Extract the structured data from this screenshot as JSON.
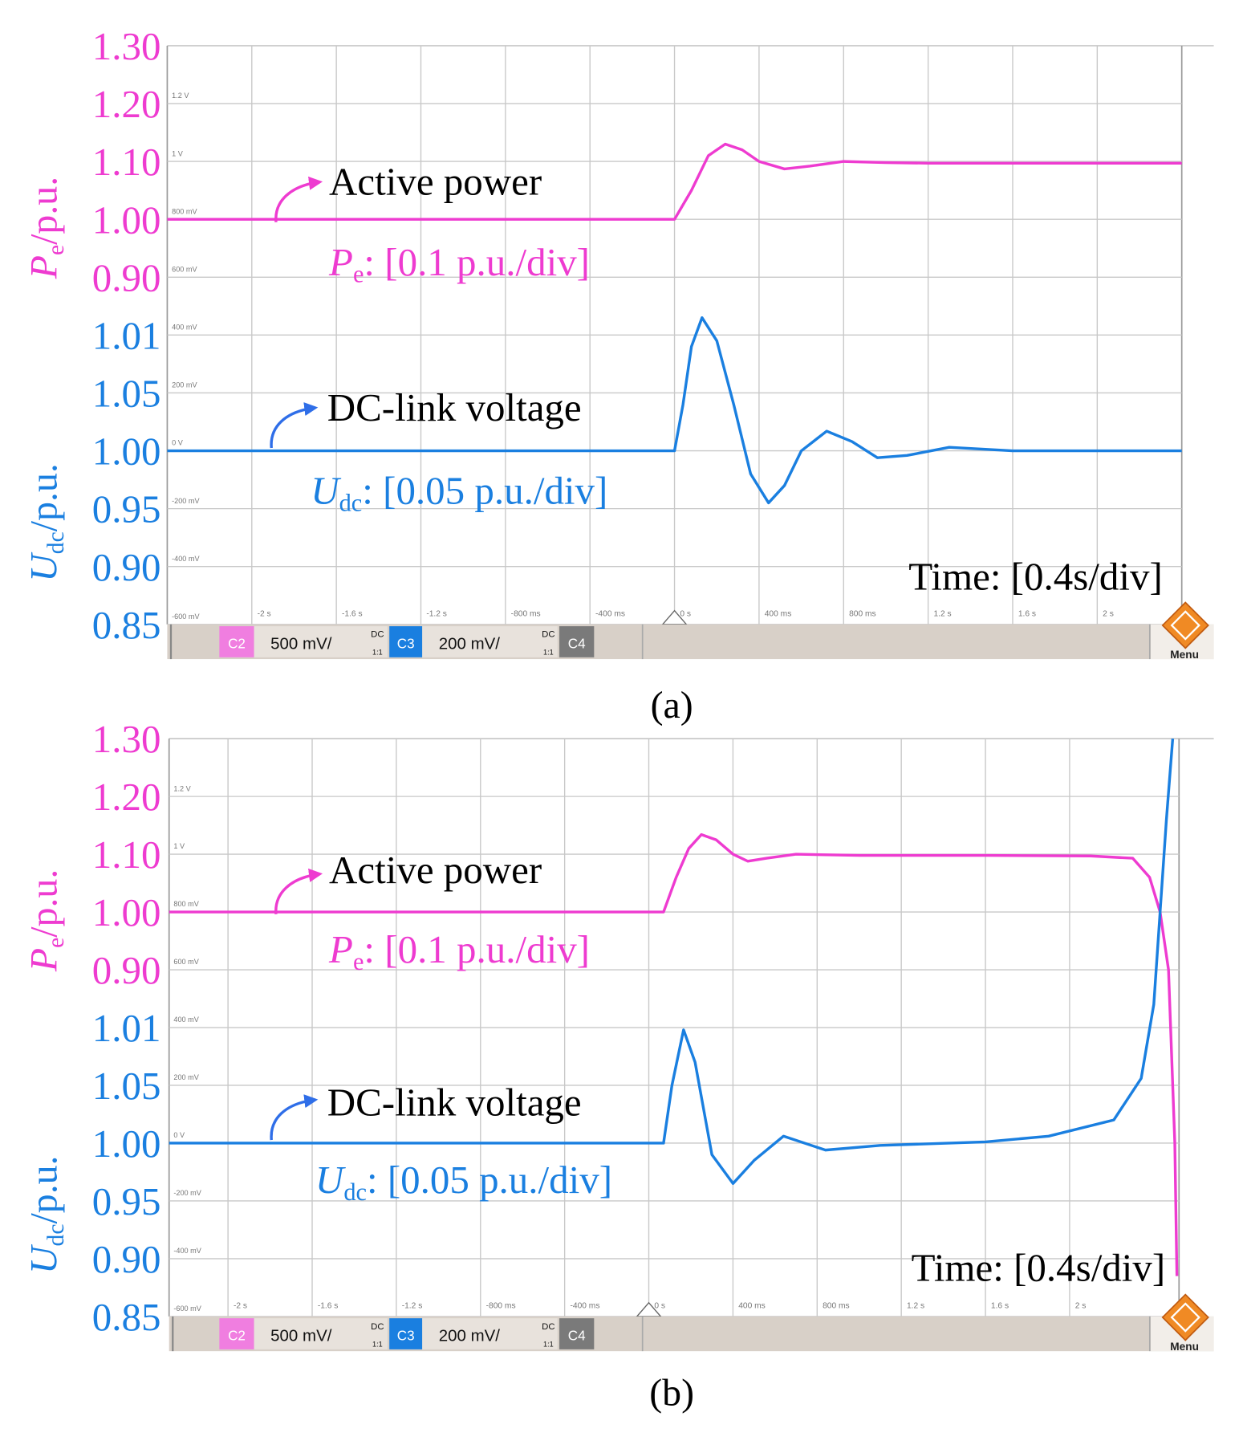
{
  "chart_data": [
    {
      "type": "line",
      "caption": "(a)",
      "y_label": {
        "symbol": "P",
        "subscript": "e",
        "unit": "/p.u."
      },
      "y2_label": {
        "symbol": "U",
        "subscript": "dc",
        "unit": "/p.u."
      },
      "ylim": [
        0.3,
        1.3
      ],
      "yticks": [
        {
          "value": 1.3,
          "label": "1.30"
        },
        {
          "value": 1.2,
          "label": "1.20"
        },
        {
          "value": 1.1,
          "label": "1.10"
        },
        {
          "value": 1.0,
          "label": "1.00"
        },
        {
          "value": 0.9,
          "label": "0.90"
        }
      ],
      "y2lim": [
        0.85,
        1.35
      ],
      "y2_extra_label": "1.01",
      "y2ticks": [
        {
          "value": 1.05,
          "label": "1.05"
        },
        {
          "value": 1.0,
          "label": "1.00"
        },
        {
          "value": 0.95,
          "label": "0.95"
        },
        {
          "value": 0.9,
          "label": "0.90"
        },
        {
          "value": 0.85,
          "label": "0.85"
        }
      ],
      "scope_ylim": [
        -0.6,
        1.4
      ],
      "scope_yticks": [
        {
          "value": 1.2,
          "label": "1.2 V"
        },
        {
          "value": 1.0,
          "label": "1 V"
        },
        {
          "value": 0.8,
          "label": "800 mV"
        },
        {
          "value": 0.6,
          "label": "600 mV"
        },
        {
          "value": 0.4,
          "label": "400 mV"
        },
        {
          "value": 0.2,
          "label": "200 mV"
        },
        {
          "value": 0,
          "label": "0 V"
        },
        {
          "value": -0.2,
          "label": "-200 mV"
        },
        {
          "value": -0.4,
          "label": "-400 mV"
        },
        {
          "value": -0.6,
          "label": "-600 mV"
        }
      ],
      "xlim": [
        -2.4,
        2.4
      ],
      "xticks": [
        {
          "value": -2,
          "label": "-2 s"
        },
        {
          "value": -1.6,
          "label": "-1.6 s"
        },
        {
          "value": -1.2,
          "label": "-1.2 s"
        },
        {
          "value": -0.8,
          "label": "-800 ms"
        },
        {
          "value": -0.4,
          "label": "-400 ms"
        },
        {
          "value": 0,
          "label": "0 s"
        },
        {
          "value": 0.4,
          "label": "400 ms"
        },
        {
          "value": 0.8,
          "label": "800 ms"
        },
        {
          "value": 1.2,
          "label": "1.2 s"
        },
        {
          "value": 1.6,
          "label": "1.6 s"
        },
        {
          "value": 2,
          "label": "2 s"
        }
      ],
      "series": [
        {
          "name": "Active power",
          "color": "#ee3bd0",
          "axis": "y",
          "x": [
            -2.4,
            0,
            0.08,
            0.16,
            0.24,
            0.32,
            0.4,
            0.52,
            0.64,
            0.8,
            1.0,
            1.2,
            2.4
          ],
          "values": [
            1.0,
            1.0,
            1.05,
            1.11,
            1.13,
            1.12,
            1.1,
            1.087,
            1.092,
            1.1,
            1.098,
            1.097,
            1.097
          ]
        },
        {
          "name": "DC-link voltage",
          "color": "#1a7fe0",
          "axis": "y2",
          "x": [
            -2.4,
            0,
            0.04,
            0.08,
            0.13,
            0.2,
            0.28,
            0.36,
            0.445,
            0.52,
            0.6,
            0.72,
            0.84,
            0.96,
            1.1,
            1.3,
            1.6,
            2.4
          ],
          "values": [
            1.0,
            1.0,
            1.04,
            1.09,
            1.115,
            1.095,
            1.04,
            0.98,
            0.955,
            0.97,
            1.0,
            1.017,
            1.008,
            0.994,
            0.996,
            1.003,
            1.0,
            1.0
          ]
        }
      ],
      "annotations": {
        "pe_scale": {
          "symbol": "P",
          "subscript": "e",
          "text": ": [0.1 p.u./div]"
        },
        "udc_scale": {
          "symbol": "U",
          "subscript": "dc",
          "text": ": [0.05 p.u./div]"
        },
        "time_scale": "Time: [0.4s/div]"
      },
      "status_bar": {
        "c2": "C2",
        "c2_scale": "500 mV/",
        "c2_coupling": "DC",
        "c2_ratio": "1:1",
        "c3": "C3",
        "c3_scale": "200 mV/",
        "c3_coupling": "DC",
        "c3_ratio": "1:1",
        "c4": "C4",
        "menu": "Menu"
      }
    },
    {
      "type": "line",
      "caption": "(b)",
      "y_label": {
        "symbol": "P",
        "subscript": "e",
        "unit": "/p.u."
      },
      "y2_label": {
        "symbol": "U",
        "subscript": "dc",
        "unit": "/p.u."
      },
      "ylim": [
        0.3,
        1.3
      ],
      "yticks": [
        {
          "value": 1.3,
          "label": "1.30"
        },
        {
          "value": 1.2,
          "label": "1.20"
        },
        {
          "value": 1.1,
          "label": "1.10"
        },
        {
          "value": 1.0,
          "label": "1.00"
        },
        {
          "value": 0.9,
          "label": "0.90"
        }
      ],
      "y2lim": [
        0.85,
        1.35
      ],
      "y2_extra_label": "1.01",
      "y2ticks": [
        {
          "value": 1.05,
          "label": "1.05"
        },
        {
          "value": 1.0,
          "label": "1.00"
        },
        {
          "value": 0.95,
          "label": "0.95"
        },
        {
          "value": 0.9,
          "label": "0.90"
        },
        {
          "value": 0.85,
          "label": "0.85"
        }
      ],
      "scope_ylim": [
        -0.6,
        1.4
      ],
      "scope_yticks": [
        {
          "value": 1.2,
          "label": "1.2 V"
        },
        {
          "value": 1.0,
          "label": "1 V"
        },
        {
          "value": 0.8,
          "label": "800 mV"
        },
        {
          "value": 0.6,
          "label": "600 mV"
        },
        {
          "value": 0.4,
          "label": "400 mV"
        },
        {
          "value": 0.2,
          "label": "200 mV"
        },
        {
          "value": 0,
          "label": "0 V"
        },
        {
          "value": -0.2,
          "label": "-200 mV"
        },
        {
          "value": -0.4,
          "label": "-400 mV"
        },
        {
          "value": -0.6,
          "label": "-600 mV"
        }
      ],
      "xlim": [
        -2.28,
        2.52
      ],
      "xticks": [
        {
          "value": -2,
          "label": "-2 s"
        },
        {
          "value": -1.6,
          "label": "-1.6 s"
        },
        {
          "value": -1.2,
          "label": "-1.2 s"
        },
        {
          "value": -0.8,
          "label": "-800 ms"
        },
        {
          "value": -0.4,
          "label": "-400 ms"
        },
        {
          "value": 0,
          "label": "0 s"
        },
        {
          "value": 0.4,
          "label": "400 ms"
        },
        {
          "value": 0.8,
          "label": "800 ms"
        },
        {
          "value": 1.2,
          "label": "1.2 s"
        },
        {
          "value": 1.6,
          "label": "1.6 s"
        },
        {
          "value": 2,
          "label": "2 s"
        }
      ],
      "series": [
        {
          "name": "Active power",
          "color": "#ee3bd0",
          "axis": "y",
          "x": [
            -2.28,
            0.07,
            0.13,
            0.19,
            0.25,
            0.32,
            0.4,
            0.47,
            0.56,
            0.7,
            1.0,
            1.6,
            2.1,
            2.3,
            2.38,
            2.43,
            2.47,
            2.5,
            2.51
          ],
          "values": [
            1.0,
            1.0,
            1.06,
            1.11,
            1.134,
            1.125,
            1.1,
            1.088,
            1.093,
            1.1,
            1.098,
            1.098,
            1.097,
            1.093,
            1.06,
            1.0,
            0.9,
            0.6,
            0.37
          ]
        },
        {
          "name": "DC-link voltage",
          "color": "#1a7fe0",
          "axis": "y2",
          "x": [
            -2.28,
            0.07,
            0.11,
            0.165,
            0.22,
            0.3,
            0.4,
            0.5,
            0.64,
            0.84,
            1.1,
            1.6,
            1.9,
            2.21,
            2.34,
            2.4,
            2.43,
            2.46,
            2.49
          ],
          "values": [
            1.0,
            1.0,
            1.05,
            1.098,
            1.07,
            0.99,
            0.965,
            0.985,
            1.006,
            0.994,
            0.998,
            1.001,
            1.006,
            1.02,
            1.056,
            1.12,
            1.2,
            1.28,
            1.35
          ]
        }
      ],
      "annotations": {
        "pe_scale": {
          "symbol": "P",
          "subscript": "e",
          "text": ": [0.1 p.u./div]"
        },
        "udc_scale": {
          "symbol": "U",
          "subscript": "dc",
          "text": ": [0.05 p.u./div]"
        },
        "time_scale": "Time: [0.4s/div]"
      },
      "status_bar": {
        "c2": "C2",
        "c2_scale": "500 mV/",
        "c2_coupling": "DC",
        "c2_ratio": "1:1",
        "c3": "C3",
        "c3_scale": "200 mV/",
        "c3_coupling": "DC",
        "c3_ratio": "1:1",
        "c4": "C4",
        "menu": "Menu"
      }
    }
  ]
}
